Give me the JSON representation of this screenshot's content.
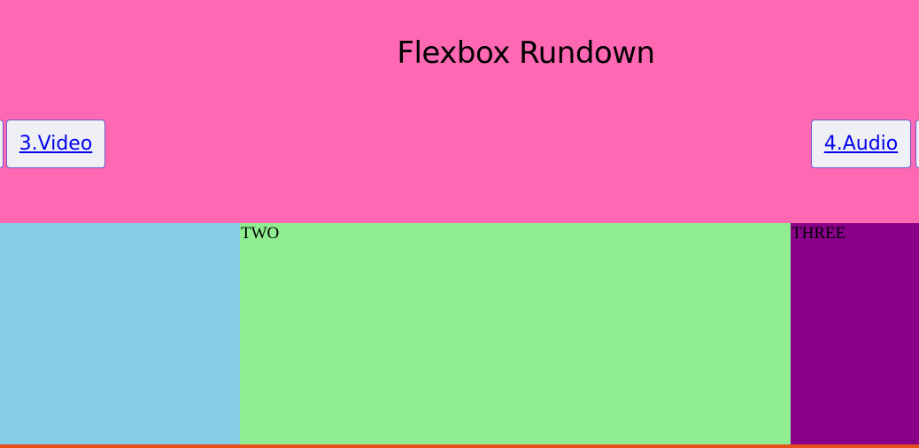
{
  "header": {
    "title": "Flexbox Rundown"
  },
  "nav": {
    "items": [
      {
        "label": ""
      },
      {
        "label": "3.Video"
      },
      {
        "label": "4.Audio"
      },
      {
        "label": ""
      }
    ]
  },
  "boxes": [
    {
      "label": ""
    },
    {
      "label": "TWO"
    },
    {
      "label": "THREE"
    }
  ],
  "colors": {
    "header_bg": "#ff69b4",
    "box_one": "#87ceeb",
    "box_two": "#90ee90",
    "box_three": "#8b008b",
    "footer_line": "#e8501a",
    "link": "#0000ee",
    "button_border": "#6a5acd",
    "button_bg": "#eff0f5"
  }
}
